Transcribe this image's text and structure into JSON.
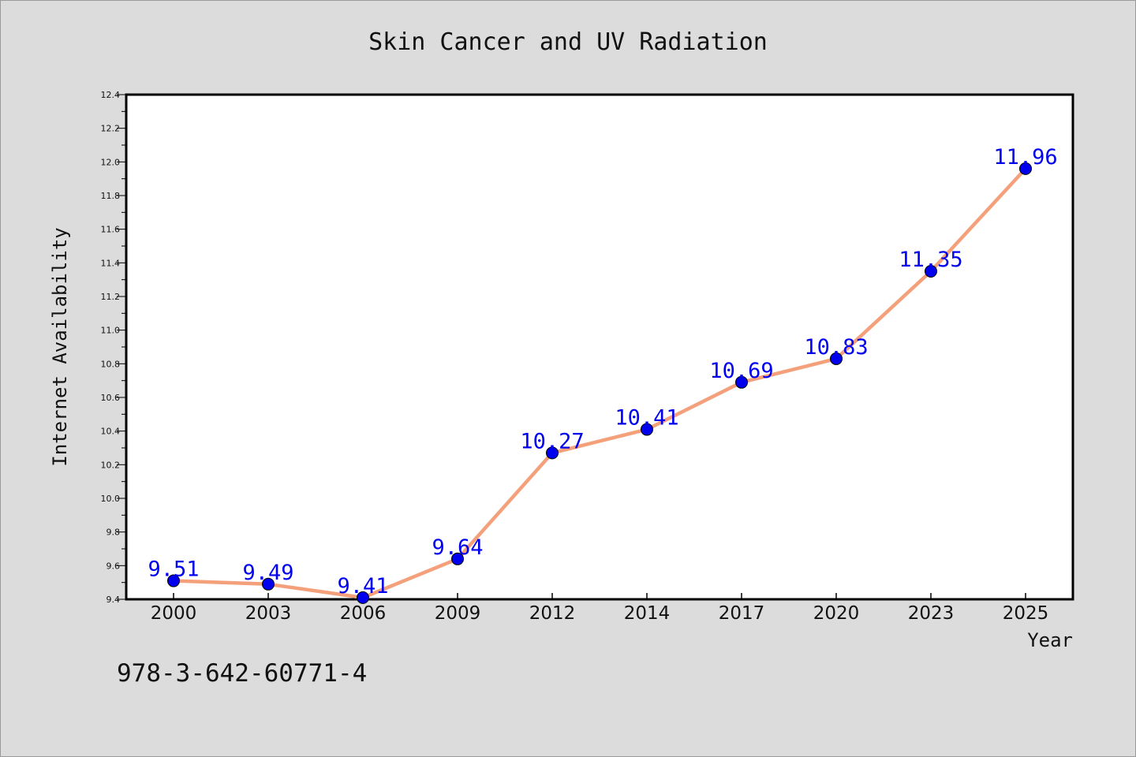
{
  "chart_data": {
    "type": "line",
    "title": "Skin Cancer and UV Radiation",
    "xlabel": "Year",
    "ylabel": "Internet Availability",
    "categories": [
      "2000",
      "2003",
      "2006",
      "2009",
      "2012",
      "2014",
      "2017",
      "2020",
      "2023",
      "2025"
    ],
    "series": [
      {
        "values": [
          9.51,
          9.49,
          9.41,
          9.64,
          10.27,
          10.41,
          10.69,
          10.83,
          11.35,
          11.96
        ]
      }
    ],
    "data_labels": [
      "9.51",
      "9.49",
      "9.41",
      "9.64",
      "10.27",
      "10.41",
      "10.69",
      "10.83",
      "11.35",
      "11.96"
    ],
    "ylim": [
      9.4,
      12.4
    ],
    "yticks": [
      "9.4",
      "9.6",
      "9.8",
      "10.0",
      "10.2",
      "10.4",
      "10.6",
      "10.8",
      "11.0",
      "11.2",
      "11.4",
      "11.6",
      "11.8",
      "12.0",
      "12.2",
      "12.4"
    ],
    "grid": false,
    "legend": "none",
    "colors": {
      "background": "#dcdcdc",
      "plot_area": "#ffffff",
      "line": "#f4a07a",
      "marker": "#0000ee",
      "data_label": "#0000ee"
    }
  },
  "annotation": "978-3-642-60771-4"
}
